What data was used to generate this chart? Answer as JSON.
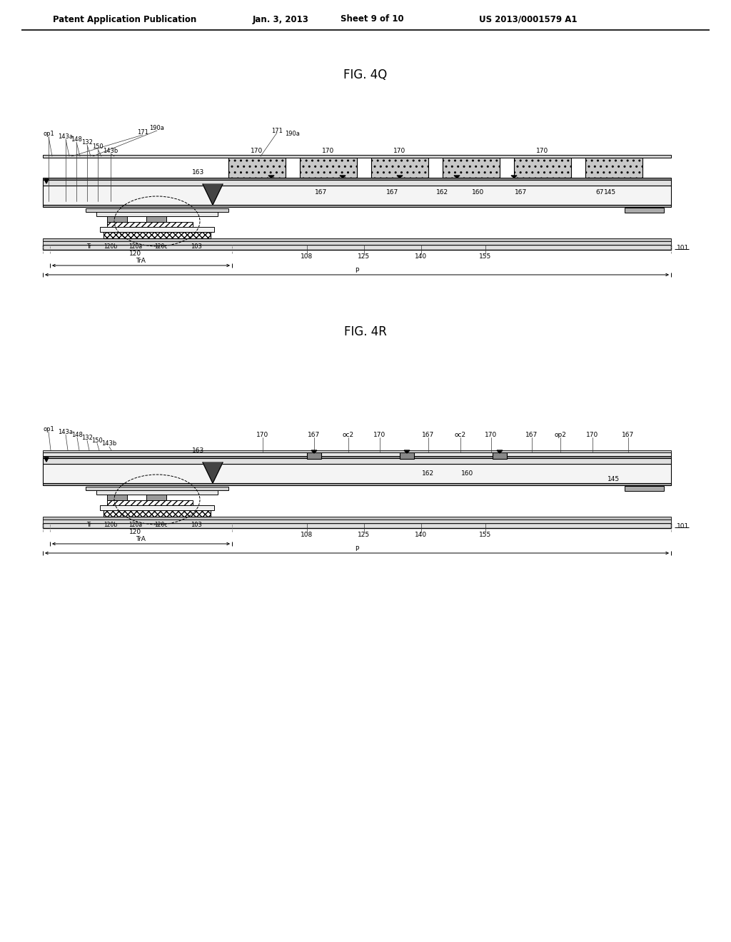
{
  "bg_color": "#ffffff",
  "header_text": "Patent Application Publication",
  "header_date": "Jan. 3, 2013",
  "header_sheet": "Sheet 9 of 10",
  "header_patent": "US 2013/0001579 A1",
  "fig4q_title": "FIG. 4Q",
  "fig4r_title": "FIG. 4R"
}
